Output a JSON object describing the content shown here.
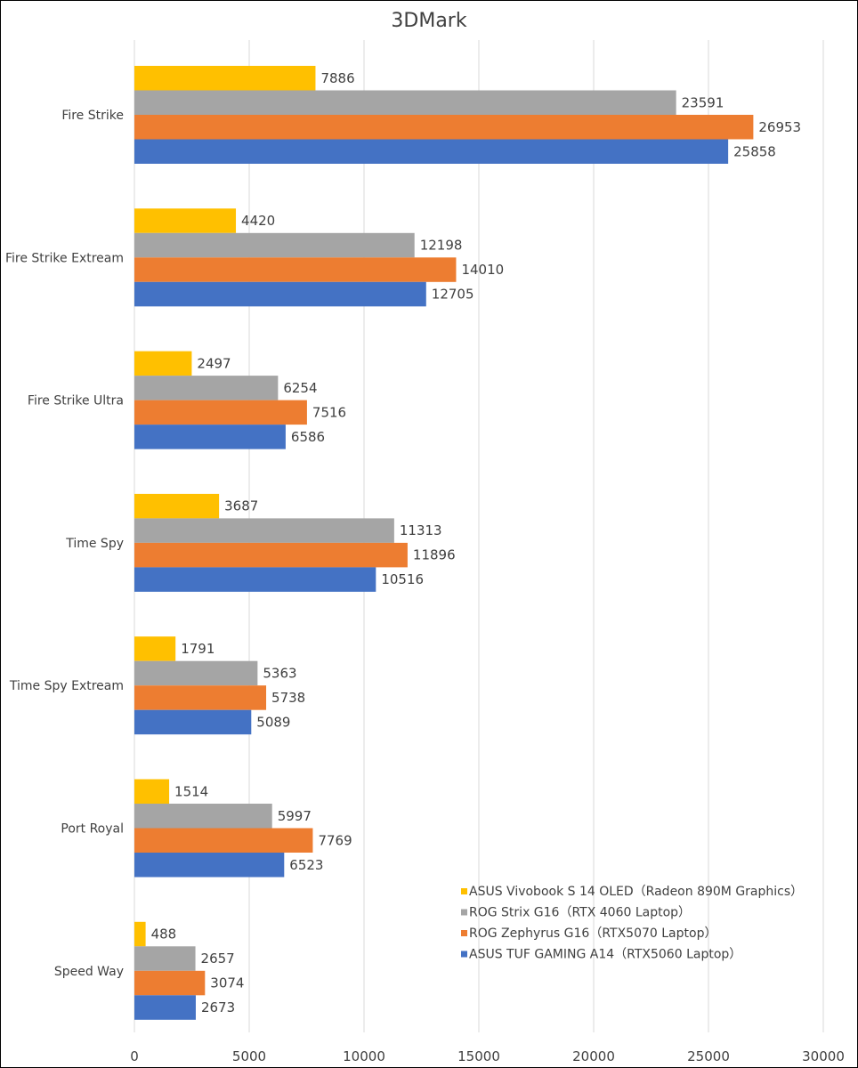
{
  "chart_data": {
    "type": "bar",
    "orientation": "horizontal",
    "title": "3DMark",
    "xlim": [
      0,
      30000
    ],
    "x_ticks": [
      0,
      5000,
      10000,
      15000,
      20000,
      25000,
      30000
    ],
    "x_tick_labels": [
      "0",
      "5000",
      "10000",
      "15000",
      "20000",
      "25000",
      "30000"
    ],
    "grid": true,
    "legend_position": "bottom-right",
    "categories": [
      "Fire Strike",
      "Fire Strike Extream",
      "Fire Strike Ultra",
      "Time Spy",
      "Time Spy Extream",
      "Port Royal",
      "Speed Way"
    ],
    "series": [
      {
        "name": "ASUS Vivobook S 14 OLED（Radeon 890M Graphics）",
        "color": "#ffc000",
        "values": [
          7886,
          4420,
          2497,
          3687,
          1791,
          1514,
          488
        ]
      },
      {
        "name": "ROG Strix G16（RTX 4060 Laptop）",
        "color": "#a5a5a5",
        "values": [
          23591,
          12198,
          6254,
          11313,
          5363,
          5997,
          2657
        ]
      },
      {
        "name": "ROG Zephyrus G16（RTX5070 Laptop）",
        "color": "#ed7d31",
        "values": [
          26953,
          14010,
          7516,
          11896,
          5738,
          7769,
          3074
        ]
      },
      {
        "name": "ASUS TUF GAMING A14（RTX5060 Laptop）",
        "color": "#4472c4",
        "values": [
          25858,
          12705,
          6586,
          10516,
          5089,
          6523,
          2673
        ]
      }
    ]
  }
}
